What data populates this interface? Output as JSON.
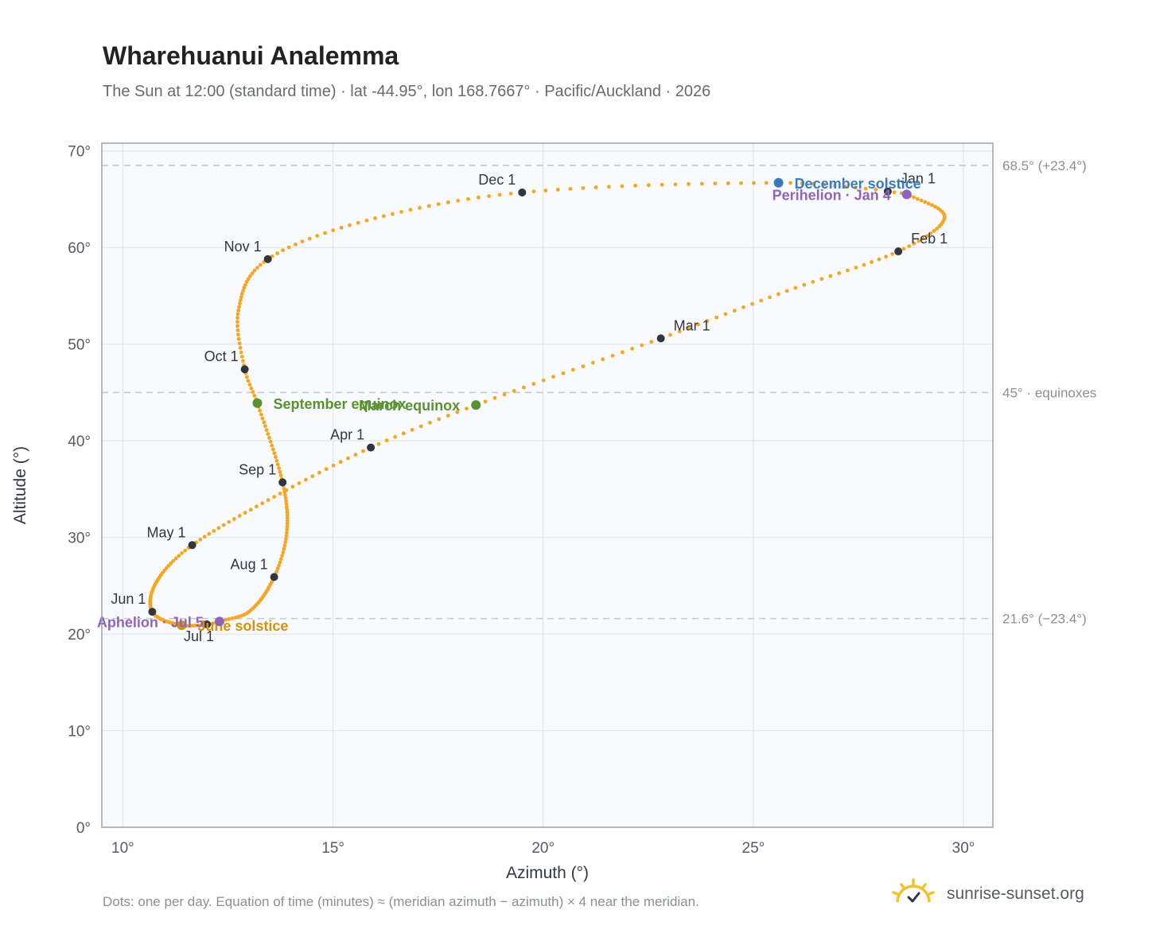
{
  "title": "Wharehuanui Analemma",
  "subtitle": "The Sun at 12:00 (standard time) · lat -44.95°, lon 168.7667° · Pacific/Auckland · 2026",
  "footnote": "Dots: one per day. Equation of time (minutes) ≈ (meridian azimuth − azimuth) × 4 near the meridian.",
  "brand": {
    "name": "sunrise-sunset.org",
    "icon": "sun-logo-icon"
  },
  "colors": {
    "curve": "#f5a623",
    "marker": "#2f3640",
    "december_solstice": "#3a7bbf",
    "june_solstice": "#d4930b",
    "equinox": "#5a9132",
    "apsis": "#9065b8",
    "reference_line": "#c4c8cf",
    "plot_bg": "#f8fafd",
    "grid": "#e3e6ea",
    "axis": "#9aa2ad"
  },
  "chart_data": {
    "type": "scatter",
    "xlabel": "Azimuth (°)",
    "ylabel": "Altitude (°)",
    "xlim": [
      9.5,
      30.7
    ],
    "ylim": [
      0,
      70.8
    ],
    "xticks": [
      10,
      15,
      20,
      25,
      30
    ],
    "xtick_labels": [
      "10°",
      "15°",
      "20°",
      "25°",
      "30°"
    ],
    "yticks": [
      0,
      10,
      20,
      30,
      40,
      50,
      60,
      70
    ],
    "ytick_labels": [
      "0°",
      "10°",
      "20°",
      "30°",
      "40°",
      "50°",
      "60°",
      "70°"
    ],
    "grid": true,
    "series_description": "one dot per day of 2026",
    "daily_path": [
      {
        "date": "Jan 1",
        "az": 28.2,
        "alt": 65.8
      },
      {
        "date": "Jan 4",
        "az": 28.65,
        "alt": 65.5
      },
      {
        "date": "Jan 18",
        "az": 29.55,
        "alt": 63.1
      },
      {
        "date": "Feb 1",
        "az": 28.45,
        "alt": 59.6
      },
      {
        "date": "Feb 15",
        "az": 25.8,
        "alt": 55.5
      },
      {
        "date": "Mar 1",
        "az": 22.8,
        "alt": 50.6
      },
      {
        "date": "Mar 20",
        "az": 18.4,
        "alt": 43.7
      },
      {
        "date": "Apr 1",
        "az": 15.9,
        "alt": 39.3
      },
      {
        "date": "Apr 15",
        "az": 13.6,
        "alt": 34.2
      },
      {
        "date": "May 1",
        "az": 11.65,
        "alt": 29.2
      },
      {
        "date": "May 16",
        "az": 10.8,
        "alt": 25.4
      },
      {
        "date": "Jun 1",
        "az": 10.7,
        "alt": 22.3
      },
      {
        "date": "Jun 21",
        "az": 11.4,
        "alt": 20.9
      },
      {
        "date": "Jul 1",
        "az": 12.0,
        "alt": 21.0
      },
      {
        "date": "Jul 5",
        "az": 12.3,
        "alt": 21.3
      },
      {
        "date": "Jul 15",
        "az": 13.0,
        "alt": 22.3
      },
      {
        "date": "Aug 1",
        "az": 13.6,
        "alt": 25.9
      },
      {
        "date": "Aug 15",
        "az": 13.9,
        "alt": 30.5
      },
      {
        "date": "Sep 1",
        "az": 13.8,
        "alt": 35.7
      },
      {
        "date": "Sep 22",
        "az": 13.2,
        "alt": 43.9
      },
      {
        "date": "Oct 1",
        "az": 12.9,
        "alt": 47.4
      },
      {
        "date": "Oct 15",
        "az": 12.75,
        "alt": 53.5
      },
      {
        "date": "Nov 1",
        "az": 13.45,
        "alt": 58.8
      },
      {
        "date": "Nov 15",
        "az": 15.8,
        "alt": 62.8
      },
      {
        "date": "Dec 1",
        "az": 19.5,
        "alt": 65.7
      },
      {
        "date": "Dec 21",
        "az": 25.6,
        "alt": 66.7
      },
      {
        "date": "Dec 31",
        "az": 28.15,
        "alt": 65.9
      }
    ],
    "month_markers": [
      {
        "label": "Jan 1",
        "az": 28.2,
        "alt": 65.8,
        "anchor": "right"
      },
      {
        "label": "Feb 1",
        "az": 28.45,
        "alt": 59.6,
        "anchor": "right"
      },
      {
        "label": "Mar 1",
        "az": 22.8,
        "alt": 50.6,
        "anchor": "right"
      },
      {
        "label": "Apr 1",
        "az": 15.9,
        "alt": 39.3,
        "anchor": "left"
      },
      {
        "label": "May 1",
        "az": 11.65,
        "alt": 29.2,
        "anchor": "left"
      },
      {
        "label": "Jun 1",
        "az": 10.7,
        "alt": 22.3,
        "anchor": "left"
      },
      {
        "label": "Jul 1",
        "az": 12.0,
        "alt": 21.0,
        "anchor": "below"
      },
      {
        "label": "Aug 1",
        "az": 13.6,
        "alt": 25.9,
        "anchor": "left"
      },
      {
        "label": "Sep 1",
        "az": 13.8,
        "alt": 35.7,
        "anchor": "left"
      },
      {
        "label": "Oct 1",
        "az": 12.9,
        "alt": 47.4,
        "anchor": "left"
      },
      {
        "label": "Nov 1",
        "az": 13.45,
        "alt": 58.8,
        "anchor": "left"
      },
      {
        "label": "Dec 1",
        "az": 19.5,
        "alt": 65.7,
        "anchor": "left"
      }
    ],
    "special_points": [
      {
        "label": "December solstice",
        "az": 25.6,
        "alt": 66.7,
        "color_key": "december_solstice",
        "anchor": "right"
      },
      {
        "label": "Perihelion · Jan 4",
        "az": 28.65,
        "alt": 65.5,
        "color_key": "apsis",
        "anchor": "left"
      },
      {
        "label": "March equinox",
        "az": 18.4,
        "alt": 43.7,
        "color_key": "equinox",
        "anchor": "left"
      },
      {
        "label": "June solstice",
        "az": 11.4,
        "alt": 20.9,
        "color_key": "june_solstice",
        "anchor": "right"
      },
      {
        "label": "Aphelion · Jul 5",
        "az": 12.3,
        "alt": 21.3,
        "color_key": "apsis",
        "anchor": "left"
      },
      {
        "label": "September equinox",
        "az": 13.2,
        "alt": 43.9,
        "color_key": "equinox",
        "anchor": "right"
      }
    ],
    "reference_lines": [
      {
        "alt": 68.5,
        "label": "68.5° (+23.4°)"
      },
      {
        "alt": 45,
        "label": "45° · equinoxes"
      },
      {
        "alt": 21.6,
        "label": "21.6° (−23.4°)"
      }
    ]
  }
}
